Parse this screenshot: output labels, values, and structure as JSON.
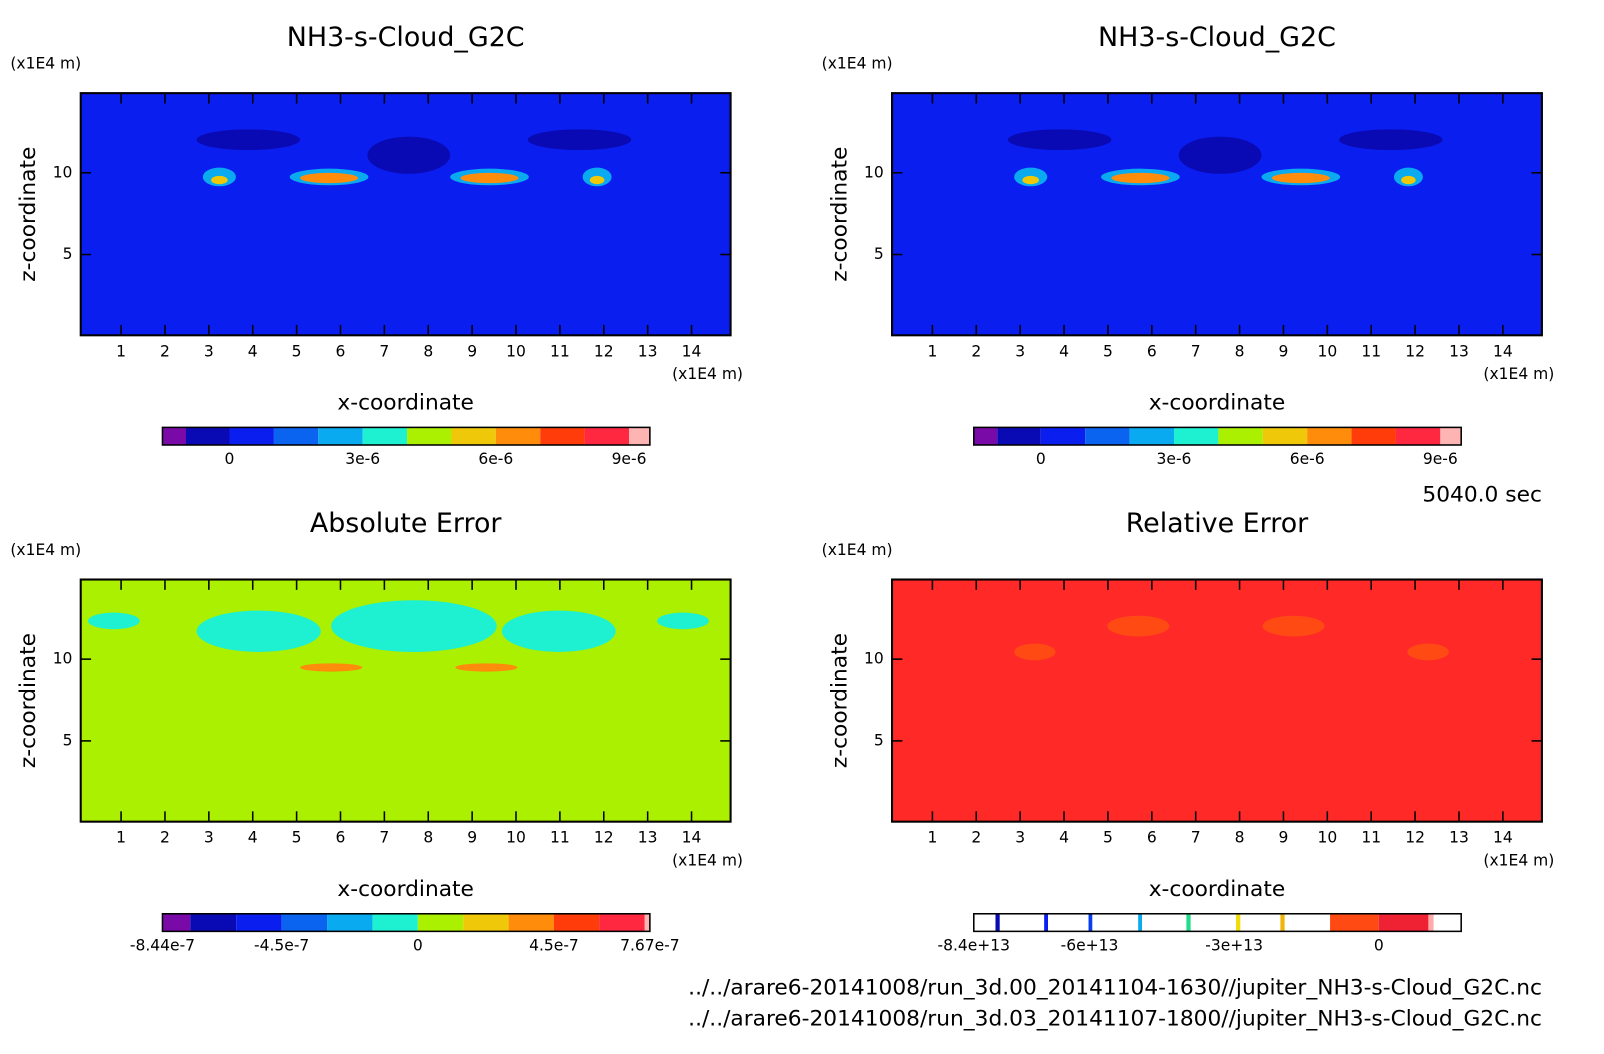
{
  "chart_data": [
    {
      "type": "contour",
      "title": "NH3-s-Cloud_G2C",
      "x_label": "x-coordinate",
      "y_label": "z-coordinate",
      "x_unit": "(x1E4 m)",
      "y_unit": "(x1E4 m)",
      "xlim": [
        0.08,
        14.89
      ],
      "ylim": [
        0.06,
        14.87
      ],
      "xticks": [
        1,
        2,
        3,
        4,
        5,
        6,
        7,
        8,
        9,
        10,
        11,
        12,
        13,
        14
      ],
      "yticks": [
        5,
        10
      ],
      "background_color": "#0a1ef0",
      "colorbar": {
        "lim": [
          -1.51e-06,
          9.47e-06
        ],
        "levels": [
          -1.51e-06,
          -9.8e-07,
          0,
          1e-06,
          2e-06,
          3e-06,
          4e-06,
          5e-06,
          6e-06,
          7e-06,
          8e-06,
          9e-06,
          9.47e-06
        ],
        "colors": [
          "#7a0aa8",
          "#0a0ab4",
          "#0a1ef0",
          "#0a64f0",
          "#0aaaf0",
          "#1ef0d2",
          "#aaf000",
          "#f0c80a",
          "#ff8c0a",
          "#ff3c0a",
          "#ff2840",
          "#ffb4b4"
        ],
        "ticks": [
          0,
          {
            "value": 3e-06,
            "label": "3e-6"
          },
          {
            "value": 6e-06,
            "label": "6e-6"
          },
          {
            "value": 9e-06,
            "label": "9e-6"
          }
        ]
      }
    },
    {
      "type": "contour",
      "title": "NH3-s-Cloud_G2C",
      "x_label": "x-coordinate",
      "y_label": "z-coordinate",
      "x_unit": "(x1E4 m)",
      "y_unit": "(x1E4 m)",
      "xlim": [
        0.08,
        14.89
      ],
      "ylim": [
        0.06,
        14.87
      ],
      "xticks": [
        1,
        2,
        3,
        4,
        5,
        6,
        7,
        8,
        9,
        10,
        11,
        12,
        13,
        14
      ],
      "yticks": [
        5,
        10
      ],
      "background_color": "#0a1ef0",
      "colorbar": {
        "lim": [
          -1.51e-06,
          9.47e-06
        ],
        "levels": [
          -1.51e-06,
          -9.8e-07,
          0,
          1e-06,
          2e-06,
          3e-06,
          4e-06,
          5e-06,
          6e-06,
          7e-06,
          8e-06,
          9e-06,
          9.47e-06
        ],
        "colors": [
          "#7a0aa8",
          "#0a0ab4",
          "#0a1ef0",
          "#0a64f0",
          "#0aaaf0",
          "#1ef0d2",
          "#aaf000",
          "#f0c80a",
          "#ff8c0a",
          "#ff3c0a",
          "#ff2840",
          "#ffb4b4"
        ],
        "ticks": [
          0,
          {
            "value": 3e-06,
            "label": "3e-6"
          },
          {
            "value": 6e-06,
            "label": "6e-6"
          },
          {
            "value": 9e-06,
            "label": "9e-6"
          }
        ]
      }
    },
    {
      "type": "contour",
      "title": "Absolute Error",
      "x_label": "x-coordinate",
      "y_label": "z-coordinate",
      "x_unit": "(x1E4 m)",
      "y_unit": "(x1E4 m)",
      "xlim": [
        0.08,
        14.89
      ],
      "ylim": [
        0.06,
        14.87
      ],
      "xticks": [
        1,
        2,
        3,
        4,
        5,
        6,
        7,
        8,
        9,
        10,
        11,
        12,
        13,
        14
      ],
      "yticks": [
        5,
        10
      ],
      "background_color": "#aaf000",
      "colorbar": {
        "lim": [
          -8.44e-07,
          7.67e-07
        ],
        "levels": [
          -8.44e-07,
          -7.52e-07,
          -6e-07,
          -4.5e-07,
          -3e-07,
          -1.5e-07,
          0,
          1.5e-07,
          3e-07,
          4.5e-07,
          6e-07,
          7.5e-07,
          7.67e-07
        ],
        "colors": [
          "#7a0aa8",
          "#0a0ab4",
          "#0a1ef0",
          "#0a64f0",
          "#0aaaf0",
          "#1ef0d2",
          "#aaf000",
          "#f0c80a",
          "#ff8c0a",
          "#ff3c0a",
          "#ff2840",
          "#ffb4b4"
        ],
        "ticks": [
          {
            "value": -8.44e-07,
            "label": "-8.44e-7"
          },
          {
            "value": -4.5e-07,
            "label": "-4.5e-7"
          },
          0,
          {
            "value": 4.5e-07,
            "label": "4.5e-7"
          },
          {
            "value": 7.67e-07,
            "label": "7.67e-7"
          }
        ]
      }
    },
    {
      "type": "contour",
      "title": "Relative Error",
      "x_label": "x-coordinate",
      "y_label": "z-coordinate",
      "x_unit": "(x1E4 m)",
      "y_unit": "(x1E4 m)",
      "xlim": [
        0.08,
        14.89
      ],
      "ylim": [
        0.06,
        14.87
      ],
      "xticks": [
        1,
        2,
        3,
        4,
        5,
        6,
        7,
        8,
        9,
        10,
        11,
        12,
        13,
        14
      ],
      "yticks": [
        5,
        10
      ],
      "background_color": "#ff2a28",
      "colorbar": {
        "lim": [
          -84000000000000.0,
          17100000000000.0
        ],
        "levels": [
          -84000000000000.0,
          -79500000000000.0,
          -78600000000000.0,
          -69400000000000.0,
          -68600000000000.0,
          -60200000000000.0,
          -59400000000000.0,
          -49900000000000.0,
          -49100000000000.0,
          -39900000000000.0,
          -39000000000000.0,
          -29600000000000.0,
          -28700000000000.0,
          -20400000000000.0,
          -19500000000000.0,
          -10100000000000.0,
          0,
          10300000000000.0,
          11400000000000.0,
          17100000000000.0
        ],
        "colors": [
          "#ffffff",
          "#0a0ab4",
          "#ffffff",
          "#0a1ef0",
          "#ffffff",
          "#0a3cf0",
          "#ffffff",
          "#0aaaf0",
          "#ffffff",
          "#22dd88",
          "#ffffff",
          "#f0dc0a",
          "#ffffff",
          "#f0b40a",
          "#ffffff",
          "#ff4a14",
          "#ee2233",
          "#ffaaaa",
          "#ffffff"
        ],
        "ticks": [
          {
            "value": -84000000000000.0,
            "label": "-8.4e+13"
          },
          {
            "value": -60000000000000.0,
            "label": "-6e+13"
          },
          {
            "value": -30000000000000.0,
            "label": "-3e+13"
          },
          0
        ]
      }
    }
  ],
  "time_label": "5040.0 sec",
  "files": [
    "../../arare6-20141008/run_3d.00_20141104-1630//jupiter_NH3-s-Cloud_G2C.nc",
    "../../arare6-20141008/run_3d.03_20141107-1800//jupiter_NH3-s-Cloud_G2C.nc"
  ]
}
